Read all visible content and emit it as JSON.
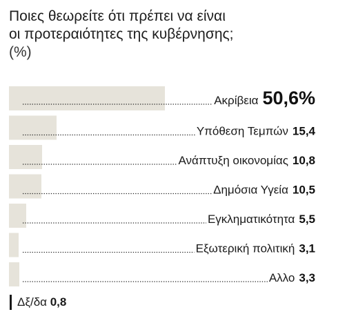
{
  "title": {
    "line1": "Ποιες θεωρείτε ότι πρέπει να είναι",
    "line2": "οι προτεραιότητες της κυβέρνησης;",
    "unit": "(%)"
  },
  "colors": {
    "bar": "#e6e3da",
    "text": "#1b1b1b"
  },
  "chart_data": {
    "type": "bar",
    "orientation": "horizontal",
    "title": "Ποιες θεωρείτε ότι πρέπει να είναι οι προτεραιότητες της κυβέρνησης; (%)",
    "categories": [
      "Ακρίβεια",
      "Υπόθεση Τεμπών",
      "Ανάπτυξη οικονομίας",
      "Δημόσια Υγεία",
      "Εγκληματικότητα",
      "Εξωτερική πολιτική",
      "Αλλο"
    ],
    "values": [
      50.6,
      15.4,
      10.8,
      10.5,
      5.5,
      3.1,
      3.3
    ],
    "value_labels": [
      "50,6%",
      "15,4",
      "10,8",
      "10,5",
      "5,5",
      "3,1",
      "3,3"
    ],
    "xlim": [
      0,
      50.6
    ],
    "grid": false,
    "legend": "none"
  },
  "dk": {
    "label": "Δξ/δα",
    "value": "0,8",
    "number": 0.8
  }
}
